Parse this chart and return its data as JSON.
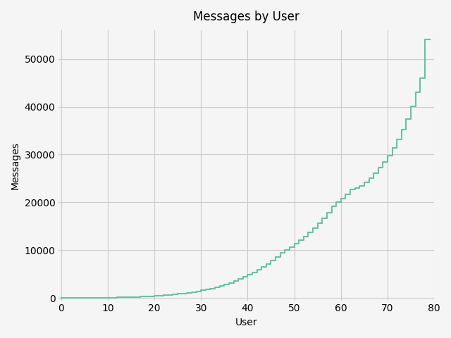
{
  "title": "Messages by User",
  "xlabel": "User",
  "ylabel": "Messages",
  "line_color": "#66c2a5",
  "line_width": 1.5,
  "xlim": [
    -0.5,
    80
  ],
  "ylim": [
    -500,
    56000
  ],
  "xticks": [
    0,
    10,
    20,
    30,
    40,
    50,
    60,
    70,
    80
  ],
  "yticks": [
    0,
    10000,
    20000,
    30000,
    40000,
    50000
  ],
  "grid_color": "#cccccc",
  "background_color": "#f5f5f5",
  "counts": [
    10,
    15,
    20,
    25,
    30,
    35,
    40,
    50,
    60,
    70,
    80,
    100,
    120,
    140,
    170,
    200,
    240,
    280,
    330,
    390,
    450,
    520,
    600,
    680,
    770,
    870,
    980,
    1100,
    1240,
    1400,
    1580,
    1780,
    2000,
    2250,
    2530,
    2840,
    3180,
    3550,
    3950,
    4380,
    4850,
    5350,
    5900,
    6500,
    7150,
    7850,
    8600,
    9400,
    10000,
    10600,
    11300,
    12100,
    12900,
    13700,
    14600,
    15600,
    16700,
    17900,
    19200,
    20000,
    20800,
    21700,
    22700,
    23000,
    23500,
    24200,
    25100,
    26100,
    27200,
    28400,
    29800,
    31400,
    33200,
    35200,
    37500,
    40100,
    43000,
    46000,
    54000,
    54000
  ]
}
